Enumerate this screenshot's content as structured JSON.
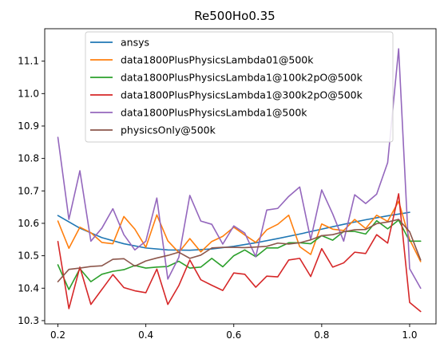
{
  "chart_data": {
    "type": "line",
    "title": "Re500Ho0.35",
    "xlabel": "",
    "ylabel": "",
    "xlim": [
      0.17,
      1.06
    ],
    "ylim": [
      10.29,
      11.2
    ],
    "xticks": [
      0.2,
      0.4,
      0.6,
      0.8,
      1.0
    ],
    "xtick_labels": [
      "0.2",
      "0.4",
      "0.6",
      "0.8",
      "1.0"
    ],
    "yticks": [
      10.3,
      10.4,
      10.5,
      10.6,
      10.7,
      10.8,
      10.9,
      11.0,
      11.1
    ],
    "ytick_labels": [
      "10.3",
      "10.4",
      "10.5",
      "10.6",
      "10.7",
      "10.8",
      "10.9",
      "11.0",
      "11.1"
    ],
    "grid": false,
    "legend_position": "top-center",
    "x": [
      0.2,
      0.225,
      0.25,
      0.275,
      0.3,
      0.325,
      0.35,
      0.375,
      0.4,
      0.425,
      0.45,
      0.475,
      0.5,
      0.525,
      0.55,
      0.575,
      0.6,
      0.625,
      0.65,
      0.675,
      0.7,
      0.725,
      0.75,
      0.775,
      0.8,
      0.825,
      0.85,
      0.875,
      0.9,
      0.925,
      0.95,
      0.975,
      1.0,
      1.025
    ],
    "series": [
      {
        "name": "ansys",
        "color": "#1f77b4",
        "x": [
          0.2,
          0.25,
          0.3,
          0.35,
          0.4,
          0.45,
          0.5,
          0.55,
          0.6,
          0.65,
          0.7,
          0.75,
          0.8,
          0.85,
          0.9,
          0.95,
          1.0
        ],
        "values": [
          10.624,
          10.585,
          10.556,
          10.537,
          10.524,
          10.518,
          10.517,
          10.521,
          10.529,
          10.54,
          10.553,
          10.567,
          10.582,
          10.597,
          10.611,
          10.623,
          10.634
        ]
      },
      {
        "name": "data1800PlusPhysicsLambda01@500k",
        "color": "#ff7f0e",
        "values": [
          10.607,
          10.523,
          10.588,
          10.571,
          10.541,
          10.537,
          10.621,
          10.582,
          10.526,
          10.626,
          10.546,
          10.51,
          10.553,
          10.512,
          10.544,
          10.56,
          10.588,
          10.564,
          10.541,
          10.58,
          10.597,
          10.625,
          10.528,
          10.504,
          10.598,
          10.582,
          10.578,
          10.612,
          10.584,
          10.625,
          10.606,
          10.668,
          10.55,
          10.482
        ]
      },
      {
        "name": "data1800PlusPhysicsLambda1@100k2pO@500k",
        "color": "#2ca02c",
        "values": [
          10.472,
          10.396,
          10.46,
          10.42,
          10.443,
          10.452,
          10.457,
          10.47,
          10.462,
          10.465,
          10.467,
          10.483,
          10.462,
          10.465,
          10.492,
          10.466,
          10.5,
          10.518,
          10.497,
          10.524,
          10.524,
          10.54,
          10.54,
          10.537,
          10.562,
          10.548,
          10.575,
          10.575,
          10.567,
          10.608,
          10.583,
          10.61,
          10.545,
          10.545
        ]
      },
      {
        "name": "data1800PlusPhysicsLambda1@300k2pO@500k",
        "color": "#d62728",
        "values": [
          10.544,
          10.337,
          10.465,
          10.35,
          10.396,
          10.442,
          10.402,
          10.392,
          10.386,
          10.459,
          10.35,
          10.408,
          10.487,
          10.426,
          10.409,
          10.393,
          10.447,
          10.443,
          10.403,
          10.437,
          10.435,
          10.487,
          10.492,
          10.436,
          10.522,
          10.465,
          10.478,
          10.511,
          10.507,
          10.565,
          10.539,
          10.691,
          10.356,
          10.328
        ]
      },
      {
        "name": "data1800PlusPhysicsLambda1@500k",
        "color": "#9467bd",
        "values": [
          10.865,
          10.612,
          10.762,
          10.545,
          10.585,
          10.645,
          10.565,
          10.518,
          10.545,
          10.678,
          10.428,
          10.495,
          10.686,
          10.607,
          10.597,
          10.536,
          10.592,
          10.57,
          10.497,
          10.641,
          10.646,
          10.683,
          10.712,
          10.55,
          10.703,
          10.629,
          10.545,
          10.688,
          10.661,
          10.69,
          10.787,
          11.138,
          10.46,
          10.4
        ]
      },
      {
        "name": "physicsOnly@500k",
        "color": "#8c564b",
        "values": [
          10.42,
          10.458,
          10.462,
          10.467,
          10.469,
          10.489,
          10.491,
          10.468,
          10.484,
          10.493,
          10.501,
          10.511,
          10.492,
          10.502,
          10.524,
          10.526,
          10.526,
          10.525,
          10.527,
          10.529,
          10.539,
          10.536,
          10.54,
          10.549,
          10.562,
          10.565,
          10.574,
          10.58,
          10.581,
          10.599,
          10.604,
          10.612,
          10.574,
          10.487
        ]
      }
    ]
  }
}
